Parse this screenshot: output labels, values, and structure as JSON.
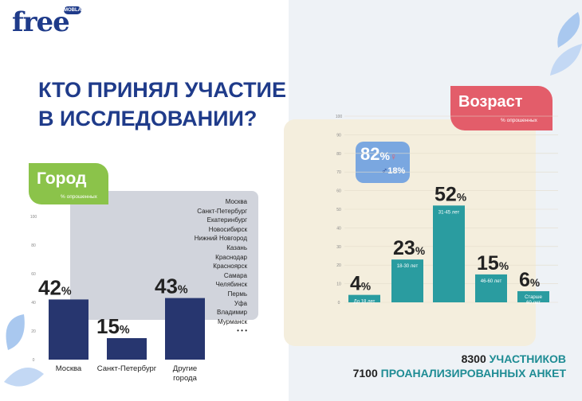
{
  "brand": {
    "name": "free",
    "badge": "MOBLA"
  },
  "headline": {
    "line1": "КТО ПРИНЯЛ УЧАСТИЕ",
    "line2": "В ИССЛЕДОВАНИИ?"
  },
  "city_section": {
    "tag": "Город",
    "subtitle": "% опрошенных",
    "cities_list": [
      "Москва",
      "Санкт-Петербург",
      "Екатеринбург",
      "Новосибирск",
      "Нижний Новгород",
      "Казань",
      "Краснодар",
      "Красноярск",
      "Самара",
      "Челябинск",
      "Пермь",
      "Уфа",
      "Владимир",
      "Мурманск",
      "• • •"
    ]
  },
  "age_section": {
    "tag": "Возраст",
    "subtitle": "% опрошенных",
    "gender": {
      "female": "82",
      "male": "18",
      "unit": "%"
    }
  },
  "footer": {
    "line1_number": "8300",
    "line1_text": "УЧАСТНИКОВ",
    "line2_number": "7100",
    "line2_text": "ПРОАНАЛИЗИРОВАННЫХ АНКЕТ"
  },
  "colors": {
    "city_bar": "#27366f",
    "age_bar": "#2a9ca0",
    "brand": "#1f3b8a",
    "city_tag": "#8bc34a",
    "age_tag": "#e35d6a"
  },
  "chart_data": [
    {
      "type": "bar",
      "title": "Город",
      "subtitle": "% опрошенных",
      "categories": [
        "Москва",
        "Санкт-Петербург",
        "Другие города"
      ],
      "values": [
        42,
        15,
        43
      ],
      "ylim": [
        0,
        100
      ],
      "yticks": [
        0,
        20,
        40,
        60,
        80,
        100
      ]
    },
    {
      "type": "bar",
      "title": "Возраст",
      "subtitle": "% опрошенных",
      "categories": [
        "До 18 лет",
        "18-30 лет",
        "31-45 лет",
        "46-60 лет",
        "Старше 60 лет"
      ],
      "values": [
        4,
        23,
        52,
        15,
        6
      ],
      "ylim": [
        0,
        100
      ],
      "yticks": [
        0,
        10,
        20,
        30,
        40,
        50,
        60,
        70,
        80,
        90,
        100
      ]
    }
  ]
}
